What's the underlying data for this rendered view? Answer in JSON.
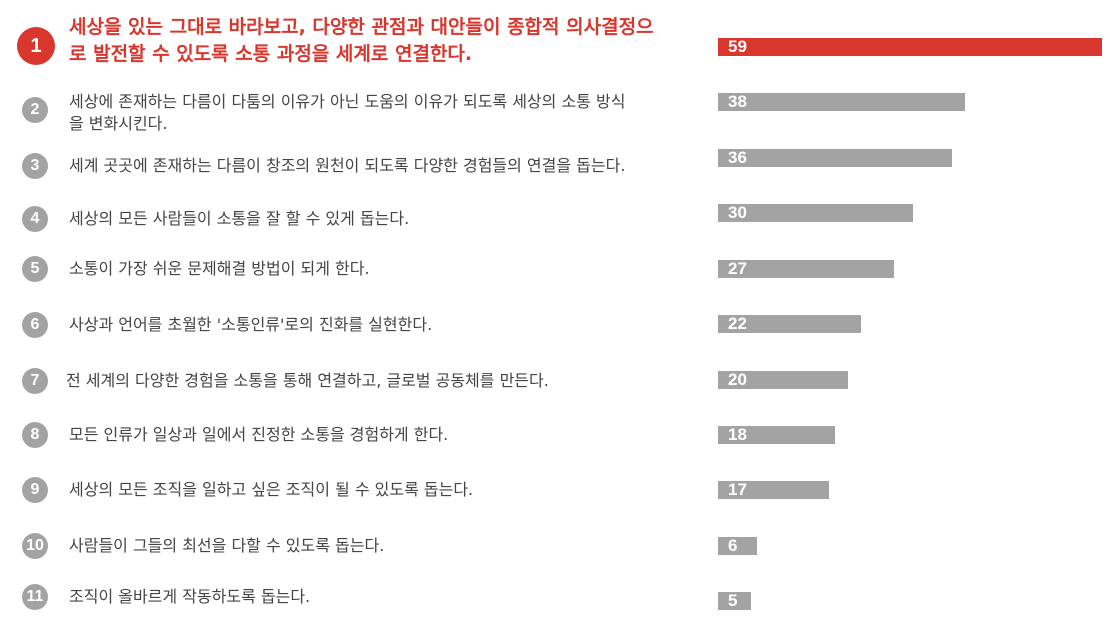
{
  "chart_data": {
    "type": "bar",
    "orientation": "horizontal",
    "highlight_color": "#d9372d",
    "bar_color": "#a3a3a3",
    "xlim": [
      0,
      59
    ],
    "items": [
      {
        "rank": "1",
        "label": "세상을 있는 그대로 바라보고, 다양한 관점과 대안들이 종합적 의사결정으로 발전할 수 있도록 소통 과정을 세계로 연결한다.",
        "value": 59,
        "highlight": true
      },
      {
        "rank": "2",
        "label": "세상에 존재하는 다름이 다툼의 이유가 아닌 도움의 이유가 되도록 세상의 소통 방식을 변화시킨다.",
        "value": 38
      },
      {
        "rank": "3",
        "label": "세계 곳곳에 존재하는 다름이 창조의 원천이 되도록 다양한 경험들의 연결을 돕는다.",
        "value": 36
      },
      {
        "rank": "4",
        "label": "세상의 모든 사람들이 소통을 잘 할 수 있게 돕는다.",
        "value": 30
      },
      {
        "rank": "5",
        "label": "소통이 가장 쉬운 문제해결 방법이 되게 한다.",
        "value": 27
      },
      {
        "rank": "6",
        "label": "사상과 언어를 초월한 '소통인류'로의 진화를 실현한다.",
        "value": 22
      },
      {
        "rank": "7",
        "label": "전 세계의 다양한 경험을 소통을 통해 연결하고, 글로벌 공동체를 만든다.",
        "value": 20
      },
      {
        "rank": "8",
        "label": "모든 인류가 일상과 일에서 진정한 소통을 경험하게 한다.",
        "value": 18
      },
      {
        "rank": "9",
        "label": "세상의 모든 조직을 일하고 싶은 조직이 될 수 있도록 돕는다.",
        "value": 17
      },
      {
        "rank": "10",
        "label": "사람들이 그들의 최선을 다할 수 있도록 돕는다.",
        "value": 6
      },
      {
        "rank": "11",
        "label": "조직이 올바르게 작동하도록 돕는다.",
        "value": 5
      }
    ]
  }
}
